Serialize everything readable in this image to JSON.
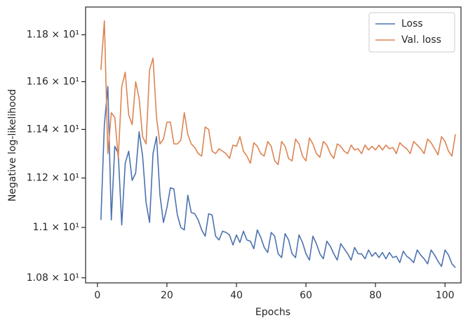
{
  "chart_data": {
    "type": "line",
    "xlabel": "Epochs",
    "ylabel": "Negative log-likelihood",
    "log_y": true,
    "legend": "upper right",
    "xlim": [
      -3.4,
      104.6
    ],
    "ylim": [
      10.78,
      11.92
    ],
    "xticks": [
      0,
      20,
      40,
      60,
      80,
      100
    ],
    "yticks": [
      {
        "value": 10.8,
        "label": "1.08 × 10¹"
      },
      {
        "value": 11.0,
        "label": "1.1 × 10¹"
      },
      {
        "value": 11.2,
        "label": "1.12 × 10¹"
      },
      {
        "value": 11.4,
        "label": "1.14 × 10¹"
      },
      {
        "value": 11.6,
        "label": "1.16 × 10¹"
      },
      {
        "value": 11.8,
        "label": "1.18 × 10¹"
      }
    ],
    "x": [
      1,
      2,
      3,
      4,
      5,
      6,
      7,
      8,
      9,
      10,
      11,
      12,
      13,
      14,
      15,
      16,
      17,
      18,
      19,
      20,
      21,
      22,
      23,
      24,
      25,
      26,
      27,
      28,
      29,
      30,
      31,
      32,
      33,
      34,
      35,
      36,
      37,
      38,
      39,
      40,
      41,
      42,
      43,
      44,
      45,
      46,
      47,
      48,
      49,
      50,
      51,
      52,
      53,
      54,
      55,
      56,
      57,
      58,
      59,
      60,
      61,
      62,
      63,
      64,
      65,
      66,
      67,
      68,
      69,
      70,
      71,
      72,
      73,
      74,
      75,
      76,
      77,
      78,
      79,
      80,
      81,
      82,
      83,
      84,
      85,
      86,
      87,
      88,
      89,
      90,
      91,
      92,
      93,
      94,
      95,
      96,
      97,
      98,
      99,
      100,
      101,
      102,
      103
    ],
    "series": [
      {
        "name": "Loss",
        "color": "#4c72b0",
        "values": [
          11.03,
          11.42,
          11.58,
          11.03,
          11.33,
          11.3,
          11.01,
          11.26,
          11.31,
          11.19,
          11.22,
          11.39,
          11.29,
          11.1,
          11.02,
          11.3,
          11.37,
          11.13,
          11.02,
          11.08,
          11.16,
          11.155,
          11.05,
          11.0,
          10.99,
          11.13,
          11.06,
          11.055,
          11.03,
          10.99,
          10.965,
          11.055,
          11.05,
          10.965,
          10.95,
          10.985,
          10.98,
          10.97,
          10.93,
          10.97,
          10.94,
          10.985,
          10.95,
          10.945,
          10.915,
          10.99,
          10.96,
          10.92,
          10.9,
          10.98,
          10.965,
          10.895,
          10.88,
          10.975,
          10.95,
          10.895,
          10.88,
          10.97,
          10.94,
          10.895,
          10.87,
          10.965,
          10.935,
          10.895,
          10.875,
          10.945,
          10.925,
          10.895,
          10.87,
          10.935,
          10.915,
          10.895,
          10.87,
          10.92,
          10.895,
          10.895,
          10.875,
          10.91,
          10.885,
          10.9,
          10.88,
          10.9,
          10.875,
          10.9,
          10.88,
          10.885,
          10.86,
          10.905,
          10.885,
          10.875,
          10.86,
          10.91,
          10.89,
          10.875,
          10.855,
          10.91,
          10.89,
          10.865,
          10.845,
          10.91,
          10.89,
          10.855,
          10.84
        ]
      },
      {
        "name": "Val. loss",
        "color": "#dd8452",
        "values": [
          11.65,
          11.86,
          11.3,
          11.47,
          11.45,
          11.28,
          11.58,
          11.64,
          11.46,
          11.42,
          11.6,
          11.53,
          11.37,
          11.34,
          11.65,
          11.7,
          11.45,
          11.34,
          11.36,
          11.43,
          11.43,
          11.34,
          11.34,
          11.355,
          11.47,
          11.38,
          11.34,
          11.325,
          11.3,
          11.29,
          11.41,
          11.4,
          11.31,
          11.3,
          11.32,
          11.31,
          11.3,
          11.28,
          11.335,
          11.33,
          11.37,
          11.31,
          11.29,
          11.26,
          11.345,
          11.33,
          11.3,
          11.29,
          11.35,
          11.33,
          11.27,
          11.255,
          11.35,
          11.33,
          11.28,
          11.27,
          11.36,
          11.34,
          11.29,
          11.27,
          11.365,
          11.34,
          11.3,
          11.285,
          11.35,
          11.335,
          11.3,
          11.28,
          11.34,
          11.33,
          11.31,
          11.3,
          11.335,
          11.315,
          11.32,
          11.3,
          11.335,
          11.315,
          11.33,
          11.315,
          11.335,
          11.315,
          11.335,
          11.32,
          11.325,
          11.3,
          11.345,
          11.33,
          11.32,
          11.3,
          11.35,
          11.335,
          11.32,
          11.3,
          11.36,
          11.345,
          11.32,
          11.295,
          11.37,
          11.35,
          11.31,
          11.29,
          11.38
        ]
      }
    ]
  }
}
